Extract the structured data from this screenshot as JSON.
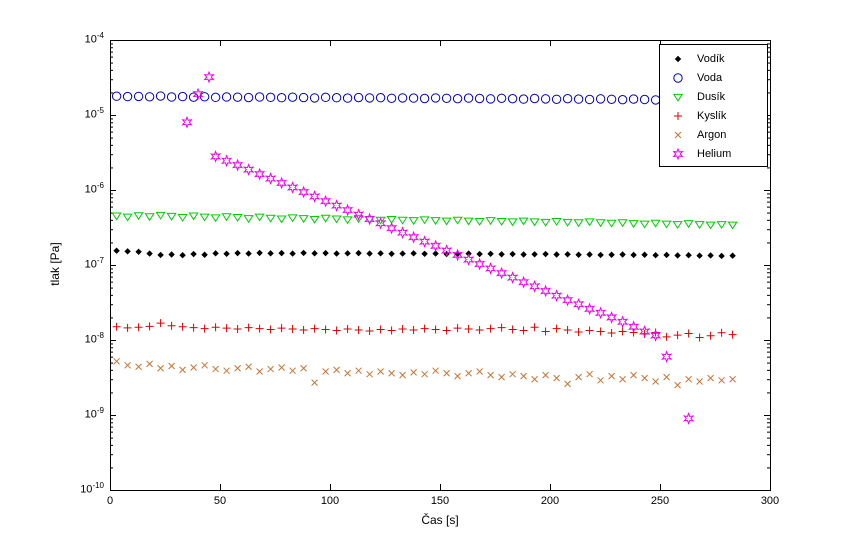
{
  "chart_data": {
    "type": "scatter",
    "title": "",
    "xlabel": "Čas [s]",
    "ylabel": "tlak [Pa]",
    "x_range": [
      0,
      300
    ],
    "y_scale": "log",
    "y_range": [
      1e-10,
      0.0001
    ],
    "x_ticks": [
      0,
      50,
      100,
      150,
      200,
      250,
      300
    ],
    "y_tick_exponents": [
      -4,
      -5,
      -6,
      -7,
      -8,
      -9,
      -10
    ],
    "grid": false,
    "legend_position": "top-right",
    "x": [
      3,
      8,
      13,
      18,
      23,
      28,
      33,
      38,
      43,
      48,
      53,
      58,
      63,
      68,
      73,
      78,
      83,
      88,
      93,
      98,
      103,
      108,
      113,
      118,
      123,
      128,
      133,
      138,
      143,
      148,
      153,
      158,
      163,
      168,
      173,
      178,
      183,
      188,
      193,
      198,
      203,
      208,
      213,
      218,
      223,
      228,
      233,
      238,
      243,
      248,
      253,
      258,
      263,
      268,
      273,
      278,
      283
    ],
    "series": [
      {
        "name": "Vodík",
        "slug": "vodik",
        "marker": "diamond",
        "color": "#000000",
        "values": [
          1.55e-07,
          1.52e-07,
          1.5e-07,
          1.42e-07,
          1.36e-07,
          1.38e-07,
          1.35e-07,
          1.4e-07,
          1.37e-07,
          1.43e-07,
          1.41e-07,
          1.44e-07,
          1.42e-07,
          1.45e-07,
          1.43e-07,
          1.44e-07,
          1.42e-07,
          1.45e-07,
          1.43e-07,
          1.44e-07,
          1.42e-07,
          1.43e-07,
          1.44e-07,
          1.42e-07,
          1.43e-07,
          1.41e-07,
          1.42e-07,
          1.43e-07,
          1.41e-07,
          1.42e-07,
          1.4e-07,
          1.41e-07,
          1.42e-07,
          1.4e-07,
          1.41e-07,
          1.39e-07,
          1.4e-07,
          1.38e-07,
          1.39e-07,
          1.4e-07,
          1.38e-07,
          1.39e-07,
          1.37e-07,
          1.38e-07,
          1.36e-07,
          1.37e-07,
          1.38e-07,
          1.36e-07,
          1.37e-07,
          1.35e-07,
          1.36e-07,
          1.34e-07,
          1.35e-07,
          1.33e-07,
          1.34e-07,
          1.32e-07,
          1.33e-07
        ]
      },
      {
        "name": "Voda",
        "slug": "voda",
        "marker": "circle",
        "color": "#0000bb",
        "values": [
          1.78e-05,
          1.76e-05,
          1.77e-05,
          1.75e-05,
          1.79e-05,
          1.74e-05,
          1.76e-05,
          1.73e-05,
          1.75e-05,
          1.72e-05,
          1.74e-05,
          1.73e-05,
          1.71e-05,
          1.74e-05,
          1.72e-05,
          1.7e-05,
          1.73e-05,
          1.71e-05,
          1.69e-05,
          1.72e-05,
          1.7e-05,
          1.68e-05,
          1.71e-05,
          1.69e-05,
          1.7e-05,
          1.67e-05,
          1.69e-05,
          1.68e-05,
          1.66e-05,
          1.69e-05,
          1.67e-05,
          1.65e-05,
          1.68e-05,
          1.66e-05,
          1.64e-05,
          1.67e-05,
          1.65e-05,
          1.63e-05,
          1.66e-05,
          1.64e-05,
          1.62e-05,
          1.65e-05,
          1.63e-05,
          1.61e-05,
          1.64e-05,
          1.62e-05,
          1.6e-05,
          1.63e-05,
          1.61e-05,
          1.59e-05,
          1.62e-05,
          1.6e-05,
          1.58e-05,
          1.61e-05,
          1.59e-05,
          1.6e-05,
          1.58e-05
        ]
      },
      {
        "name": "Dusík",
        "slug": "dusik",
        "marker": "triangle-down",
        "color": "#00cc00",
        "values": [
          4.55e-07,
          4.4e-07,
          4.6e-07,
          4.45e-07,
          4.65e-07,
          4.5e-07,
          4.35e-07,
          4.55e-07,
          4.4e-07,
          4.3e-07,
          4.45e-07,
          4.35e-07,
          4.2e-07,
          4.4e-07,
          4.25e-07,
          4.15e-07,
          4.3e-07,
          4.2e-07,
          4.1e-07,
          4.25e-07,
          4.15e-07,
          4.05e-07,
          4.2e-07,
          4.1e-07,
          4e-07,
          4.1e-07,
          4e-07,
          3.95e-07,
          4.05e-07,
          3.95e-07,
          3.9e-07,
          4e-07,
          3.9e-07,
          3.85e-07,
          3.95e-07,
          3.85e-07,
          3.8e-07,
          3.9e-07,
          3.8e-07,
          3.75e-07,
          3.85e-07,
          3.75e-07,
          3.7e-07,
          3.8e-07,
          3.7e-07,
          3.65e-07,
          3.7e-07,
          3.6e-07,
          3.55e-07,
          3.65e-07,
          3.55e-07,
          3.5e-07,
          3.6e-07,
          3.5e-07,
          3.45e-07,
          3.5e-07,
          3.45e-07
        ]
      },
      {
        "name": "Kyslík",
        "slug": "kyslik",
        "marker": "plus",
        "color": "#dd0000",
        "values": [
          1.5e-08,
          1.45e-08,
          1.48e-08,
          1.52e-08,
          1.68e-08,
          1.55e-08,
          1.5e-08,
          1.46e-08,
          1.42e-08,
          1.48e-08,
          1.44e-08,
          1.4e-08,
          1.46e-08,
          1.42e-08,
          1.38e-08,
          1.44e-08,
          1.4e-08,
          1.36e-08,
          1.42e-08,
          1.38e-08,
          1.34e-08,
          1.4e-08,
          1.36e-08,
          1.32e-08,
          1.38e-08,
          1.34e-08,
          1.4e-08,
          1.36e-08,
          1.42e-08,
          1.38e-08,
          1.34e-08,
          1.44e-08,
          1.4e-08,
          1.36e-08,
          1.42e-08,
          1.46e-08,
          1.38e-08,
          1.34e-08,
          1.48e-08,
          1.3e-08,
          1.42e-08,
          1.36e-08,
          1.28e-08,
          1.34e-08,
          1.3e-08,
          1.24e-08,
          1.3e-08,
          1.26e-08,
          1.2e-08,
          1.26e-08,
          1.1e-08,
          1.16e-08,
          1.22e-08,
          1.08e-08,
          1.14e-08,
          1.25e-08,
          1.18e-08
        ]
      },
      {
        "name": "Argon",
        "slug": "argon",
        "marker": "x",
        "color": "#c87533",
        "values": [
          5.2e-09,
          4.6e-09,
          4.4e-09,
          4.8e-09,
          4.2e-09,
          4.5e-09,
          4e-09,
          4.3e-09,
          4.6e-09,
          4.1e-09,
          3.9e-09,
          4.2e-09,
          4.4e-09,
          3.8e-09,
          4.1e-09,
          4.3e-09,
          3.9e-09,
          4.2e-09,
          2.7e-09,
          3.8e-09,
          4e-09,
          3.6e-09,
          3.9e-09,
          3.5e-09,
          3.8e-09,
          3.6e-09,
          3.4e-09,
          3.7e-09,
          3.5e-09,
          3.9e-09,
          3.6e-09,
          3.3e-09,
          3.6e-09,
          3.8e-09,
          3.4e-09,
          3.2e-09,
          3.5e-09,
          3.3e-09,
          3e-09,
          3.4e-09,
          3.1e-09,
          2.6e-09,
          3.2e-09,
          3.5e-09,
          2.9e-09,
          3.3e-09,
          3e-09,
          3.4e-09,
          3.1e-09,
          2.8e-09,
          3.2e-09,
          2.5e-09,
          3e-09,
          2.8e-09,
          3.1e-09,
          2.9e-09,
          3e-09
        ]
      },
      {
        "name": "Helium",
        "slug": "helium",
        "marker": "hexagram",
        "color": "#ee00ee",
        "points": [
          [
            35,
            8e-06
          ],
          [
            40,
            1.9e-05
          ],
          [
            45,
            3.2e-05
          ],
          [
            48,
            2.8e-06
          ],
          [
            53,
            2.45e-06
          ],
          [
            58,
            2.15e-06
          ],
          [
            63,
            1.87e-06
          ],
          [
            68,
            1.63e-06
          ],
          [
            73,
            1.42e-06
          ],
          [
            78,
            1.24e-06
          ],
          [
            83,
            1.08e-06
          ],
          [
            88,
            9.4e-07
          ],
          [
            93,
            8.2e-07
          ],
          [
            98,
            7.1e-07
          ],
          [
            103,
            6.2e-07
          ],
          [
            108,
            5.4e-07
          ],
          [
            113,
            4.7e-07
          ],
          [
            118,
            4.1e-07
          ],
          [
            123,
            3.6e-07
          ],
          [
            128,
            3.1e-07
          ],
          [
            133,
            2.7e-07
          ],
          [
            138,
            2.35e-07
          ],
          [
            143,
            2.05e-07
          ],
          [
            148,
            1.8e-07
          ],
          [
            153,
            1.56e-07
          ],
          [
            158,
            1.36e-07
          ],
          [
            163,
            1.18e-07
          ],
          [
            168,
            1.03e-07
          ],
          [
            173,
            9e-08
          ],
          [
            178,
            7.8e-08
          ],
          [
            183,
            6.8e-08
          ],
          [
            188,
            5.9e-08
          ],
          [
            193,
            5.2e-08
          ],
          [
            198,
            4.5e-08
          ],
          [
            203,
            3.9e-08
          ],
          [
            208,
            3.4e-08
          ],
          [
            213,
            3e-08
          ],
          [
            218,
            2.6e-08
          ],
          [
            223,
            2.3e-08
          ],
          [
            228,
            2e-08
          ],
          [
            233,
            1.75e-08
          ],
          [
            238,
            1.5e-08
          ],
          [
            243,
            1.3e-08
          ],
          [
            248,
            1.15e-08
          ],
          [
            253,
            6e-09
          ],
          [
            263,
            9e-10
          ]
        ]
      }
    ]
  }
}
